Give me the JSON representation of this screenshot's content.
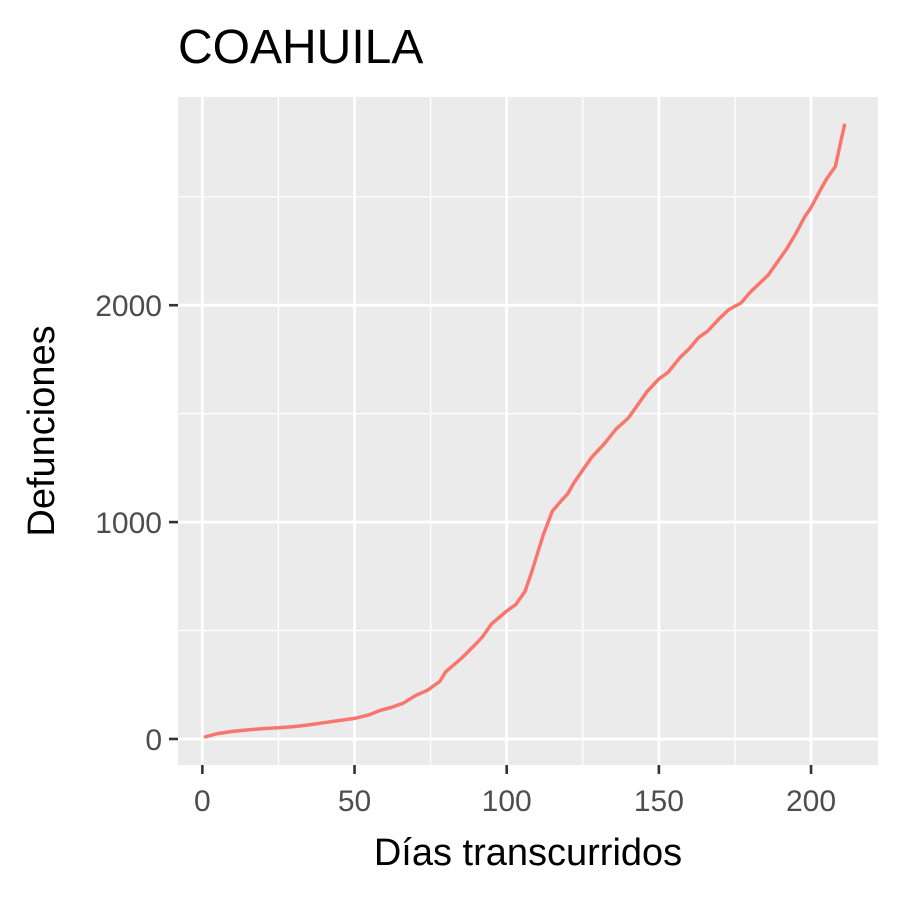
{
  "chart_data": {
    "type": "line",
    "title": "COAHUILA",
    "xlabel": "Días transcurridos",
    "ylabel": "Defunciones",
    "xlim": [
      -8,
      222
    ],
    "ylim": [
      -120,
      2960
    ],
    "x_ticks": [
      0,
      50,
      100,
      150,
      200
    ],
    "y_ticks": [
      0,
      1000,
      2000
    ],
    "x_tick_labels": [
      "0",
      "50",
      "100",
      "150",
      "200"
    ],
    "y_tick_labels": [
      "0",
      "1000",
      "2000"
    ],
    "grid": true,
    "legend": "none",
    "colors": {
      "line": "#F8766D",
      "panel": "#EBEBEB",
      "grid": "#FFFFFF",
      "tick": "#333333"
    },
    "series": [
      {
        "x": [
          1,
          5,
          10,
          15,
          20,
          25,
          30,
          35,
          40,
          45,
          50,
          55,
          58,
          62,
          66,
          70,
          74,
          78,
          80,
          85,
          90,
          92,
          95,
          100,
          103,
          106,
          108,
          110,
          112,
          115,
          118,
          120,
          122,
          125,
          128,
          132,
          136,
          140,
          143,
          146,
          150,
          153,
          157,
          160,
          163,
          166,
          170,
          173,
          177,
          180,
          183,
          186,
          190,
          192,
          195,
          198,
          200,
          203,
          205,
          208,
          210,
          211
        ],
        "y": [
          10,
          25,
          35,
          42,
          48,
          52,
          57,
          65,
          75,
          85,
          95,
          112,
          130,
          145,
          165,
          200,
          225,
          265,
          310,
          370,
          440,
          470,
          530,
          590,
          620,
          680,
          760,
          850,
          940,
          1050,
          1100,
          1130,
          1180,
          1240,
          1300,
          1360,
          1430,
          1480,
          1540,
          1600,
          1660,
          1690,
          1760,
          1800,
          1850,
          1880,
          1940,
          1980,
          2010,
          2060,
          2100,
          2140,
          2220,
          2260,
          2330,
          2410,
          2450,
          2530,
          2580,
          2640,
          2770,
          2830
        ]
      }
    ]
  }
}
